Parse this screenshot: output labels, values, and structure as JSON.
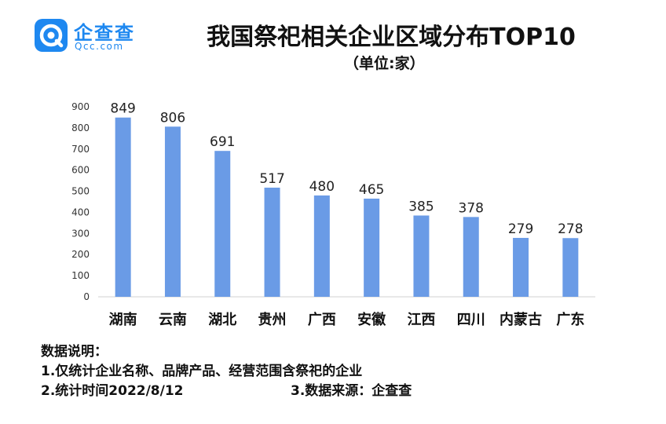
{
  "brand": {
    "name": "企查查",
    "domain": "Qcc.com",
    "icon": "qcc-logo-icon",
    "color": "#1e88f0"
  },
  "title": "我国祭祀相关企业区域分布TOP10",
  "unit": "（单位:家）",
  "notes": {
    "heading": "数据说明：",
    "line1": "1.仅统计企业名称、品牌产品、经营范围含祭祀的企业",
    "line2": "2.统计时间2022/8/12",
    "line3": "3.数据来源：企查查"
  },
  "chart_data": {
    "type": "bar",
    "categories": [
      "湖南",
      "云南",
      "湖北",
      "贵州",
      "广西",
      "安徽",
      "江西",
      "四川",
      "内蒙古",
      "广东"
    ],
    "values": [
      849,
      806,
      691,
      517,
      480,
      465,
      385,
      378,
      279,
      278
    ],
    "yticks": [
      0,
      100,
      200,
      300,
      400,
      500,
      600,
      700,
      800,
      900
    ],
    "ylim": [
      0,
      900
    ],
    "bar_color": "#6a9be6",
    "grid": false,
    "legend": "none"
  }
}
